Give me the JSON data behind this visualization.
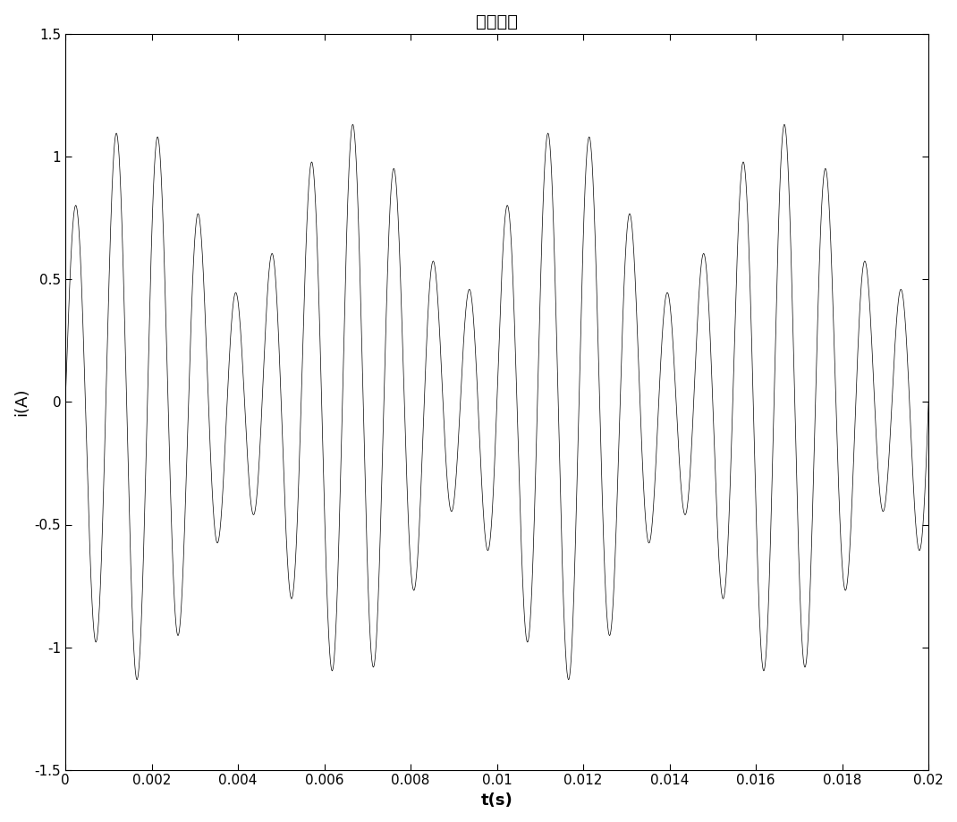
{
  "title": "激励信号",
  "xlabel": "t(s)",
  "ylabel": "i(A)",
  "xlim": [
    0,
    0.02
  ],
  "ylim": [
    -1.5,
    1.5
  ],
  "xticks": [
    0,
    0.002,
    0.004,
    0.006,
    0.008,
    0.01,
    0.012,
    0.014,
    0.016,
    0.018,
    0.02
  ],
  "yticks": [
    -1.5,
    -1.0,
    -0.5,
    0,
    0.5,
    1.0,
    1.5
  ],
  "ytick_labels": [
    "-1.5",
    "-1",
    "-0.5",
    "0",
    "0.5",
    "1",
    "1.5"
  ],
  "line_color": "#000000",
  "line_width": 0.5,
  "background_color": "#ffffff",
  "f1": 100,
  "f2": 1000,
  "f3": 1100,
  "A1": 0.7,
  "A2": 0.7,
  "A3": 0.7,
  "sample_rate": 200000,
  "duration": 0.02,
  "title_fontsize": 14,
  "label_fontsize": 13,
  "tick_fontsize": 11
}
